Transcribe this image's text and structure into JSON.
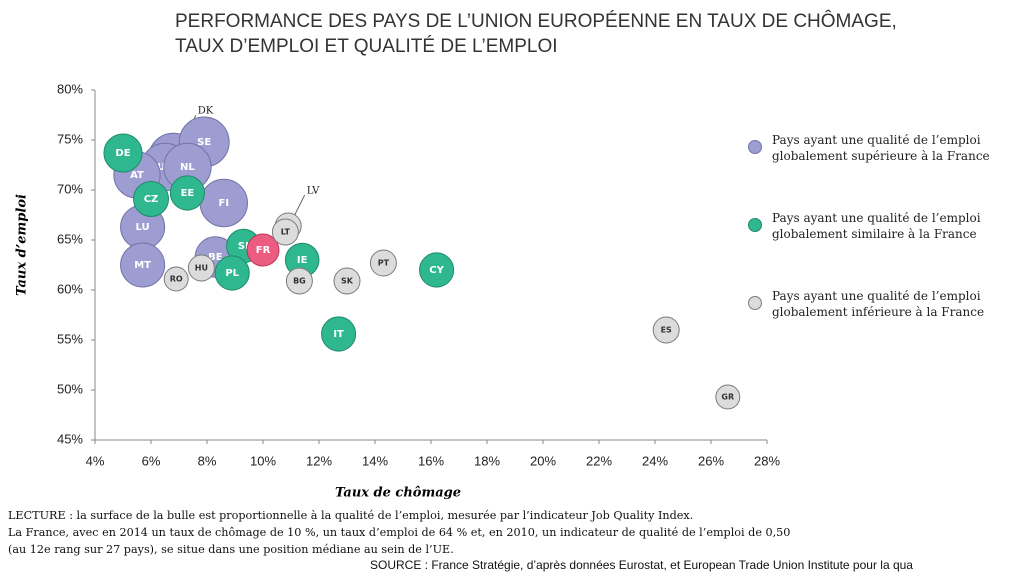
{
  "chart_data": {
    "type": "bubble",
    "title": [
      "PERFORMANCE DES PAYS DE L’UNION EUROPÉENNE EN TAUX DE CHÔMAGE,",
      "TAUX D’EMPLOI ET QUALITÉ DE L’EMPLOI"
    ],
    "x_label": "Taux de chômage",
    "y_label": "Taux d’emploi",
    "xlim": [
      4,
      28
    ],
    "ylim": [
      45,
      80
    ],
    "xticks": [
      {
        "value": 4,
        "label": "4%"
      },
      {
        "value": 6,
        "label": "6%"
      },
      {
        "value": 8,
        "label": "8%"
      },
      {
        "value": 10,
        "label": "10%"
      },
      {
        "value": 12,
        "label": "12%"
      },
      {
        "value": 14,
        "label": "14%"
      },
      {
        "value": 16,
        "label": "16%"
      },
      {
        "value": 18,
        "label": "18%"
      },
      {
        "value": 20,
        "label": "20%"
      },
      {
        "value": 22,
        "label": "22%"
      },
      {
        "value": 24,
        "label": "24%"
      },
      {
        "value": 26,
        "label": "26%"
      },
      {
        "value": 28,
        "label": "28%"
      }
    ],
    "yticks": [
      {
        "value": 45,
        "label": "45%"
      },
      {
        "value": 50,
        "label": "50%"
      },
      {
        "value": 55,
        "label": "55%"
      },
      {
        "value": 60,
        "label": "60%"
      },
      {
        "value": 65,
        "label": "65%"
      },
      {
        "value": 70,
        "label": "70%"
      },
      {
        "value": 75,
        "label": "75%"
      },
      {
        "value": 80,
        "label": "80%"
      }
    ],
    "highlight": "FR",
    "highlight_color": "#ec5b80",
    "callouts": [
      "DK",
      "LV"
    ],
    "series": [
      {
        "name": "Pays ayant une qualité de l’emploi globalement supérieure à la France",
        "color": "#9d9dd2",
        "stroke": "#7272a8",
        "labels": [
          "DK",
          "SE",
          "UK",
          "NL",
          "AT",
          "FI",
          "LU",
          "MT",
          "BE"
        ],
        "x": [
          6.8,
          7.9,
          6.5,
          7.3,
          5.5,
          8.6,
          5.7,
          5.7,
          8.3
        ],
        "values": [
          73.2,
          74.8,
          72.3,
          72.3,
          71.5,
          68.7,
          66.3,
          62.5,
          63.3
        ],
        "sizes": [
          1.2,
          1.22,
          1.1,
          1.1,
          1.05,
          1.1,
          0.95,
          0.95,
          0.8
        ]
      },
      {
        "name": "Pays ayant une qualité de l’emploi globalement similaire à la France",
        "color": "#2fb890",
        "stroke": "#1f8a6a",
        "labels": [
          "DE",
          "EE",
          "CZ",
          "SI",
          "IE",
          "PL",
          "CY",
          "IT",
          "FR"
        ],
        "x": [
          5.0,
          7.3,
          6.0,
          9.3,
          11.4,
          8.9,
          16.2,
          12.7,
          10.0
        ],
        "values": [
          73.7,
          69.7,
          69.1,
          64.4,
          63.0,
          61.7,
          62.0,
          55.6,
          64
        ],
        "sizes": [
          0.71,
          0.57,
          0.6,
          0.55,
          0.55,
          0.57,
          0.57,
          0.57,
          0.5
        ]
      },
      {
        "name": "Pays ayant une qualité de l’emploi globalement inférieure à la France",
        "color": "#dcdcdc",
        "stroke": "#7a7a7a",
        "labels": [
          "LV",
          "LT",
          "HU",
          "RO",
          "BG",
          "SK",
          "PT",
          "ES",
          "GR"
        ],
        "x": [
          10.9,
          10.8,
          7.8,
          6.9,
          11.3,
          13.0,
          14.3,
          24.4,
          26.6
        ],
        "values": [
          66.4,
          65.8,
          62.2,
          61.1,
          60.9,
          60.9,
          62.7,
          56.0,
          49.3
        ],
        "sizes": [
          0.33,
          0.33,
          0.33,
          0.28,
          0.33,
          0.33,
          0.33,
          0.33,
          0.28
        ]
      }
    ]
  },
  "notes": [
    "LECTURE : la surface de la bulle est proportionnelle à la qualité de l’emploi, mesurée par l’indicateur Job Quality Index.",
    "La France, avec en 2014  un taux de chômage de 10 %, un taux d’emploi  de 64 % et, en 2010, un indicateur de qualité de l’emploi de 0,50",
    "(au 12e rang sur 27 pays), se situe dans une position médiane au sein de l’UE."
  ],
  "source": "SOURCE : France Stratégie, d’après données Eurostat, et European Trade Union Institute pour la qua"
}
